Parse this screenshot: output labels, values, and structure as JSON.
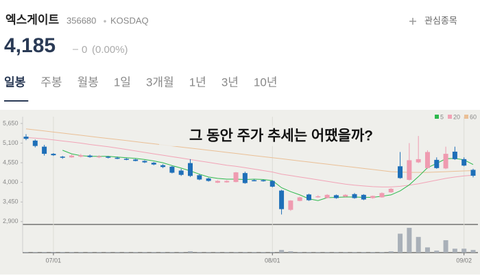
{
  "header": {
    "name": "엑스게이트",
    "code": "356680",
    "market": "KOSDAQ",
    "watch": "관심종목"
  },
  "price": {
    "value": "4,185",
    "change": "0",
    "change_rate": "(0.00%)"
  },
  "tabs": [
    "일봉",
    "주봉",
    "월봉",
    "1일",
    "3개월",
    "1년",
    "3년",
    "10년"
  ],
  "active_tab": 0,
  "caption": "그 동안 주가 추세는 어땠을까?",
  "chart_data": {
    "type": "candlestick",
    "categories": [
      null,
      null,
      null,
      "07/01",
      null,
      null,
      null,
      null,
      null,
      null,
      null,
      null,
      null,
      null,
      null,
      null,
      null,
      null,
      null,
      null,
      null,
      null,
      null,
      null,
      null,
      null,
      null,
      "08/01",
      null,
      null,
      null,
      null,
      null,
      null,
      null,
      null,
      null,
      null,
      null,
      null,
      null,
      null,
      null,
      null,
      null,
      null,
      null,
      null,
      "09/02",
      null
    ],
    "open": [
      5280,
      5170,
      5000,
      4800,
      4720,
      4700,
      4720,
      4750,
      4700,
      4720,
      4690,
      4660,
      4640,
      4600,
      4550,
      4480,
      4440,
      4330,
      4540,
      4200,
      4110,
      3990,
      4000,
      4010,
      4260,
      4060,
      4060,
      4040,
      3770,
      3230,
      3480,
      3660,
      3590,
      3560,
      3640,
      3600,
      3670,
      3650,
      3560,
      3580,
      3720,
      4450,
      4070,
      4560,
      4400,
      4630,
      4390,
      4860,
      4650,
      4350
    ],
    "high": [
      5350,
      5200,
      5050,
      4820,
      4740,
      4780,
      4800,
      4780,
      4760,
      4740,
      4720,
      4680,
      4660,
      4620,
      4570,
      4510,
      4460,
      4380,
      4650,
      4230,
      4130,
      4060,
      4060,
      4290,
      4300,
      4090,
      4080,
      4060,
      3790,
      3500,
      3600,
      3680,
      3640,
      3670,
      3660,
      3670,
      3700,
      3670,
      3630,
      3720,
      3840,
      4850,
      5100,
      5300,
      4900,
      4700,
      5000,
      5000,
      4700,
      4380
    ],
    "low": [
      5180,
      4980,
      4750,
      4740,
      4660,
      4690,
      4700,
      4690,
      4680,
      4670,
      4650,
      4620,
      4590,
      4540,
      4480,
      4400,
      4250,
      4180,
      4150,
      4060,
      4020,
      3980,
      3990,
      4000,
      3960,
      4030,
      4020,
      3860,
      3100,
      3200,
      3470,
      3480,
      3570,
      3550,
      3540,
      3590,
      3540,
      3500,
      3540,
      3570,
      3710,
      4100,
      4050,
      4540,
      4380,
      4380,
      4370,
      4630,
      4450,
      4140
    ],
    "close": [
      5220,
      5020,
      4800,
      4760,
      4690,
      4750,
      4760,
      4710,
      4730,
      4690,
      4660,
      4640,
      4600,
      4560,
      4500,
      4430,
      4270,
      4210,
      4180,
      4080,
      4040,
      4040,
      4040,
      4280,
      3980,
      4050,
      4040,
      3880,
      3250,
      3490,
      3580,
      3500,
      3610,
      3650,
      3560,
      3650,
      3560,
      3520,
      3620,
      3700,
      3820,
      4120,
      4620,
      4650,
      4850,
      4400,
      4800,
      4650,
      4470,
      4185
    ],
    "up_color": "#ef9bb0",
    "down_color": "#1e6fb8",
    "series": [
      {
        "name": "5",
        "color": "#2db84d",
        "values": [
          null,
          null,
          null,
          null,
          4900,
          4800,
          4750,
          4730,
          4730,
          4730,
          4710,
          4690,
          4670,
          4640,
          4600,
          4550,
          4470,
          4400,
          4320,
          4230,
          4150,
          4110,
          4090,
          4090,
          4080,
          4090,
          4080,
          4050,
          3850,
          3740,
          3650,
          3540,
          3490,
          3570,
          3580,
          3590,
          3590,
          3580,
          3580,
          3610,
          3650,
          3760,
          3930,
          4160,
          4410,
          4530,
          4660,
          4670,
          4630,
          4500
        ]
      },
      {
        "name": "20",
        "color": "#f2a3b6",
        "values": [
          5260,
          5240,
          5220,
          5190,
          5160,
          5130,
          5100,
          5060,
          5030,
          5000,
          4960,
          4920,
          4880,
          4840,
          4800,
          4760,
          4720,
          4680,
          4640,
          4600,
          4560,
          4520,
          4480,
          4450,
          4410,
          4370,
          4330,
          4290,
          4230,
          4190,
          4150,
          4110,
          4070,
          4030,
          3990,
          3950,
          3920,
          3900,
          3880,
          3870,
          3870,
          3890,
          3920,
          3960,
          4010,
          4060,
          4110,
          4150,
          4180,
          4200
        ]
      },
      {
        "name": "60",
        "color": "#eabf95",
        "values": [
          5500,
          5470,
          5440,
          5410,
          5380,
          5350,
          5320,
          5290,
          5260,
          5230,
          5200,
          5170,
          5140,
          5110,
          5080,
          5050,
          5020,
          4990,
          4960,
          4930,
          4900,
          4870,
          4840,
          4810,
          4780,
          4750,
          4720,
          4690,
          4660,
          4630,
          4600,
          4570,
          4540,
          4510,
          4480,
          4450,
          4420,
          4390,
          4360,
          4330,
          4300,
          4290,
          4280,
          4280,
          4280,
          4290,
          4300,
          4310,
          4320,
          4330
        ]
      }
    ],
    "volume": {
      "color": "#a9b0b8",
      "ylim": [
        0,
        40
      ],
      "values": [
        1,
        1,
        1,
        1,
        1,
        1,
        1,
        1,
        1,
        1,
        1,
        1,
        1,
        1,
        1,
        1,
        1,
        1,
        2,
        1,
        1,
        1,
        1,
        1,
        1,
        1,
        1,
        1,
        4,
        2,
        1,
        1,
        1,
        1,
        1,
        1,
        1,
        1,
        1,
        1,
        2,
        29,
        38,
        24,
        8,
        3,
        19,
        6,
        6,
        4
      ]
    },
    "ylim": [
      2820,
      5840
    ],
    "yticks": [
      {
        "value": 5650,
        "label": "5,650"
      },
      {
        "value": 5100,
        "label": "5,100"
      },
      {
        "value": 4550,
        "label": "4,550"
      },
      {
        "value": 4000,
        "label": "4,000"
      },
      {
        "value": 3450,
        "label": "3,450"
      },
      {
        "value": 2900,
        "label": "2,900"
      }
    ]
  }
}
